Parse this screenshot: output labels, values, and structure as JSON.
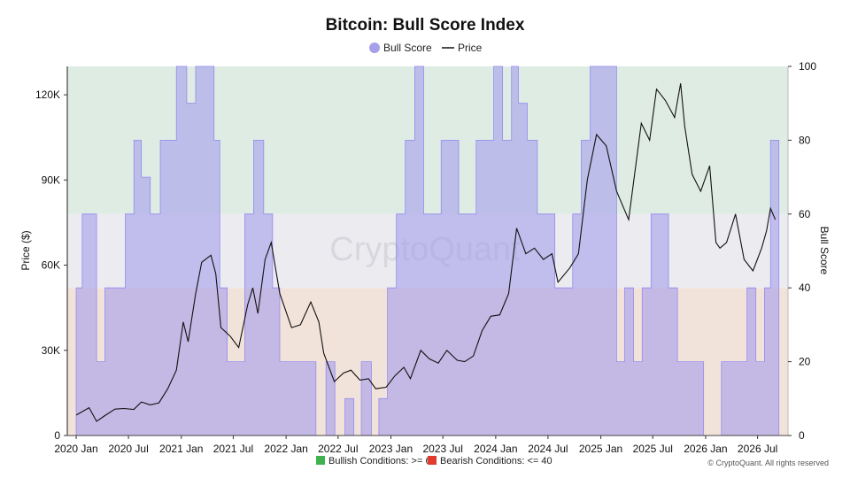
{
  "chart_data": {
    "type": "area",
    "title": "Bitcoin: Bull Score Index",
    "legend": {
      "placement": "top-center",
      "items": [
        {
          "label": "Bull Score",
          "marker": "circle",
          "color": "#a6a0ea"
        },
        {
          "label": "Price",
          "marker": "line",
          "color": "#111111"
        }
      ]
    },
    "ylabel_left": "Price ($)",
    "ylabel_right": "Bull Score",
    "ylim_left": [
      0,
      130000
    ],
    "ylim_right": [
      0,
      100
    ],
    "yticks_left": [
      {
        "value": 0,
        "label": "0"
      },
      {
        "value": 30000,
        "label": "30K"
      },
      {
        "value": 60000,
        "label": "60K"
      },
      {
        "value": 90000,
        "label": "90K"
      },
      {
        "value": 120000,
        "label": "120K"
      }
    ],
    "yticks_right": [
      0,
      20,
      40,
      60,
      80,
      100
    ],
    "xlim": [
      "2019-12-01",
      "2026-10-15"
    ],
    "xticks": [
      {
        "date": "2020-01-01",
        "label": "2020 Jan"
      },
      {
        "date": "2020-07-01",
        "label": "2020 Jul"
      },
      {
        "date": "2021-01-01",
        "label": "2021 Jan"
      },
      {
        "date": "2021-07-01",
        "label": "2021 Jul"
      },
      {
        "date": "2022-01-01",
        "label": "2022 Jan"
      },
      {
        "date": "2022-07-01",
        "label": "2022 Jul"
      },
      {
        "date": "2023-01-01",
        "label": "2023 Jan"
      },
      {
        "date": "2023-07-01",
        "label": "2023 Jul"
      },
      {
        "date": "2024-01-01",
        "label": "2024 Jan"
      },
      {
        "date": "2024-07-01",
        "label": "2024 Jul"
      },
      {
        "date": "2025-01-01",
        "label": "2025 Jan"
      },
      {
        "date": "2025-07-01",
        "label": "2025 Jul"
      },
      {
        "date": "2026-01-01",
        "label": "2026 Jan"
      },
      {
        "date": "2026-07-01",
        "label": "2026 Jul"
      }
    ],
    "bands": [
      {
        "from": 0,
        "to": 40,
        "color": "#f2e3da"
      },
      {
        "from": 40,
        "to": 60,
        "color": "#ececf0"
      },
      {
        "from": 60,
        "to": 100,
        "color": "#dfece4"
      }
    ],
    "grid": false,
    "series": [
      {
        "name": "Bull Score",
        "type": "area",
        "axis": "right",
        "color": "#a6a0ea",
        "x": [
          "2020-01-01",
          "2020-01-22",
          "2020-02-15",
          "2020-03-12",
          "2020-04-10",
          "2020-05-15",
          "2020-06-20",
          "2020-07-20",
          "2020-08-15",
          "2020-09-15",
          "2020-10-20",
          "2020-11-15",
          "2020-12-15",
          "2021-01-20",
          "2021-02-20",
          "2021-03-25",
          "2021-04-25",
          "2021-05-15",
          "2021-06-10",
          "2021-07-10",
          "2021-08-10",
          "2021-09-10",
          "2021-10-15",
          "2021-11-15",
          "2021-12-10",
          "2022-01-10",
          "2022-02-10",
          "2022-03-15",
          "2022-04-15",
          "2022-05-20",
          "2022-06-20",
          "2022-07-25",
          "2022-08-25",
          "2022-09-20",
          "2022-10-25",
          "2022-11-20",
          "2022-12-20",
          "2023-01-20",
          "2023-02-20",
          "2023-03-25",
          "2023-04-25",
          "2023-05-20",
          "2023-06-25",
          "2023-07-20",
          "2023-08-25",
          "2023-09-25",
          "2023-10-25",
          "2023-11-25",
          "2023-12-25",
          "2024-01-25",
          "2024-02-25",
          "2024-03-20",
          "2024-04-20",
          "2024-05-25",
          "2024-06-25",
          "2024-07-25",
          "2024-08-25",
          "2024-09-25",
          "2024-10-25",
          "2024-11-25",
          "2024-12-25",
          "2025-01-25",
          "2025-02-25",
          "2025-03-25",
          "2025-04-25",
          "2025-05-25",
          "2025-06-25",
          "2025-07-25",
          "2025-08-25",
          "2025-09-25",
          "2025-10-25",
          "2025-11-25",
          "2025-12-25",
          "2026-01-25",
          "2026-02-25",
          "2026-03-25",
          "2026-04-25",
          "2026-05-25",
          "2026-06-25",
          "2026-07-25",
          "2026-08-15",
          "2026-09-01"
        ],
        "values": [
          40,
          60,
          60,
          20,
          40,
          40,
          60,
          80,
          70,
          60,
          80,
          80,
          100,
          90,
          100,
          100,
          80,
          40,
          20,
          20,
          60,
          80,
          60,
          40,
          20,
          20,
          20,
          20,
          0,
          20,
          0,
          10,
          0,
          20,
          0,
          10,
          40,
          60,
          80,
          100,
          60,
          60,
          80,
          80,
          60,
          60,
          80,
          80,
          100,
          80,
          100,
          90,
          80,
          60,
          60,
          40,
          40,
          60,
          80,
          100,
          100,
          100,
          20,
          40,
          20,
          40,
          60,
          60,
          40,
          20,
          20,
          20,
          0,
          0,
          20,
          20,
          20,
          40,
          20,
          40,
          80,
          80
        ]
      },
      {
        "name": "Price",
        "type": "line",
        "axis": "left",
        "color": "#111111",
        "x": [
          "2020-01-01",
          "2020-02-15",
          "2020-03-12",
          "2020-04-10",
          "2020-05-15",
          "2020-06-15",
          "2020-07-20",
          "2020-08-15",
          "2020-09-15",
          "2020-10-15",
          "2020-11-15",
          "2020-12-15",
          "2021-01-08",
          "2021-01-25",
          "2021-02-20",
          "2021-03-13",
          "2021-04-14",
          "2021-05-01",
          "2021-05-19",
          "2021-06-20",
          "2021-07-20",
          "2021-08-20",
          "2021-09-07",
          "2021-09-25",
          "2021-10-20",
          "2021-11-10",
          "2021-12-10",
          "2022-01-20",
          "2022-02-20",
          "2022-03-28",
          "2022-04-25",
          "2022-05-12",
          "2022-06-18",
          "2022-07-20",
          "2022-08-15",
          "2022-09-15",
          "2022-10-15",
          "2022-11-09",
          "2022-12-15",
          "2023-01-15",
          "2023-02-15",
          "2023-03-10",
          "2023-04-15",
          "2023-05-15",
          "2023-06-15",
          "2023-07-15",
          "2023-08-20",
          "2023-09-15",
          "2023-10-15",
          "2023-11-15",
          "2023-12-15",
          "2024-01-15",
          "2024-02-15",
          "2024-03-14",
          "2024-04-15",
          "2024-05-15",
          "2024-06-15",
          "2024-07-15",
          "2024-08-05",
          "2024-09-15",
          "2024-10-15",
          "2024-11-15",
          "2024-12-17",
          "2025-01-20",
          "2025-02-25",
          "2025-04-08",
          "2025-05-22",
          "2025-06-20",
          "2025-07-14",
          "2025-08-14",
          "2025-09-15",
          "2025-10-06",
          "2025-10-20",
          "2025-11-15",
          "2025-12-15",
          "2026-01-15",
          "2026-02-06",
          "2026-02-20",
          "2026-03-15",
          "2026-04-15",
          "2026-05-15",
          "2026-06-15",
          "2026-07-15",
          "2026-08-01",
          "2026-08-15",
          "2026-09-01"
        ],
        "values": [
          7200,
          9800,
          5000,
          7000,
          9300,
          9500,
          9200,
          11800,
          10800,
          11500,
          16500,
          23000,
          40000,
          33000,
          50000,
          61000,
          63500,
          57000,
          38000,
          35000,
          31000,
          46000,
          52000,
          43000,
          62000,
          68000,
          50000,
          38000,
          39000,
          47000,
          40000,
          29000,
          19000,
          22000,
          23000,
          19500,
          20000,
          16500,
          17000,
          21000,
          24000,
          20000,
          30000,
          27000,
          25500,
          30000,
          26500,
          26000,
          28000,
          37000,
          42000,
          42500,
          50000,
          73000,
          64000,
          66000,
          62000,
          64000,
          54000,
          59000,
          64000,
          90000,
          106000,
          102000,
          86000,
          76000,
          110000,
          104000,
          122000,
          118000,
          112000,
          124000,
          109000,
          92000,
          86000,
          95000,
          68000,
          66000,
          68000,
          78000,
          62000,
          58000,
          66000,
          72000,
          80000,
          76000
        ]
      }
    ],
    "footer": {
      "notes": [
        {
          "color": "#3fb34f",
          "text": "Bullish Conditions: >= 60"
        },
        {
          "color": "#e23b2e",
          "text": "Bearish Conditions: <= 40"
        }
      ],
      "credit": "© CryptoQuant. All rights reserved",
      "watermark": "CryptoQuant"
    }
  }
}
